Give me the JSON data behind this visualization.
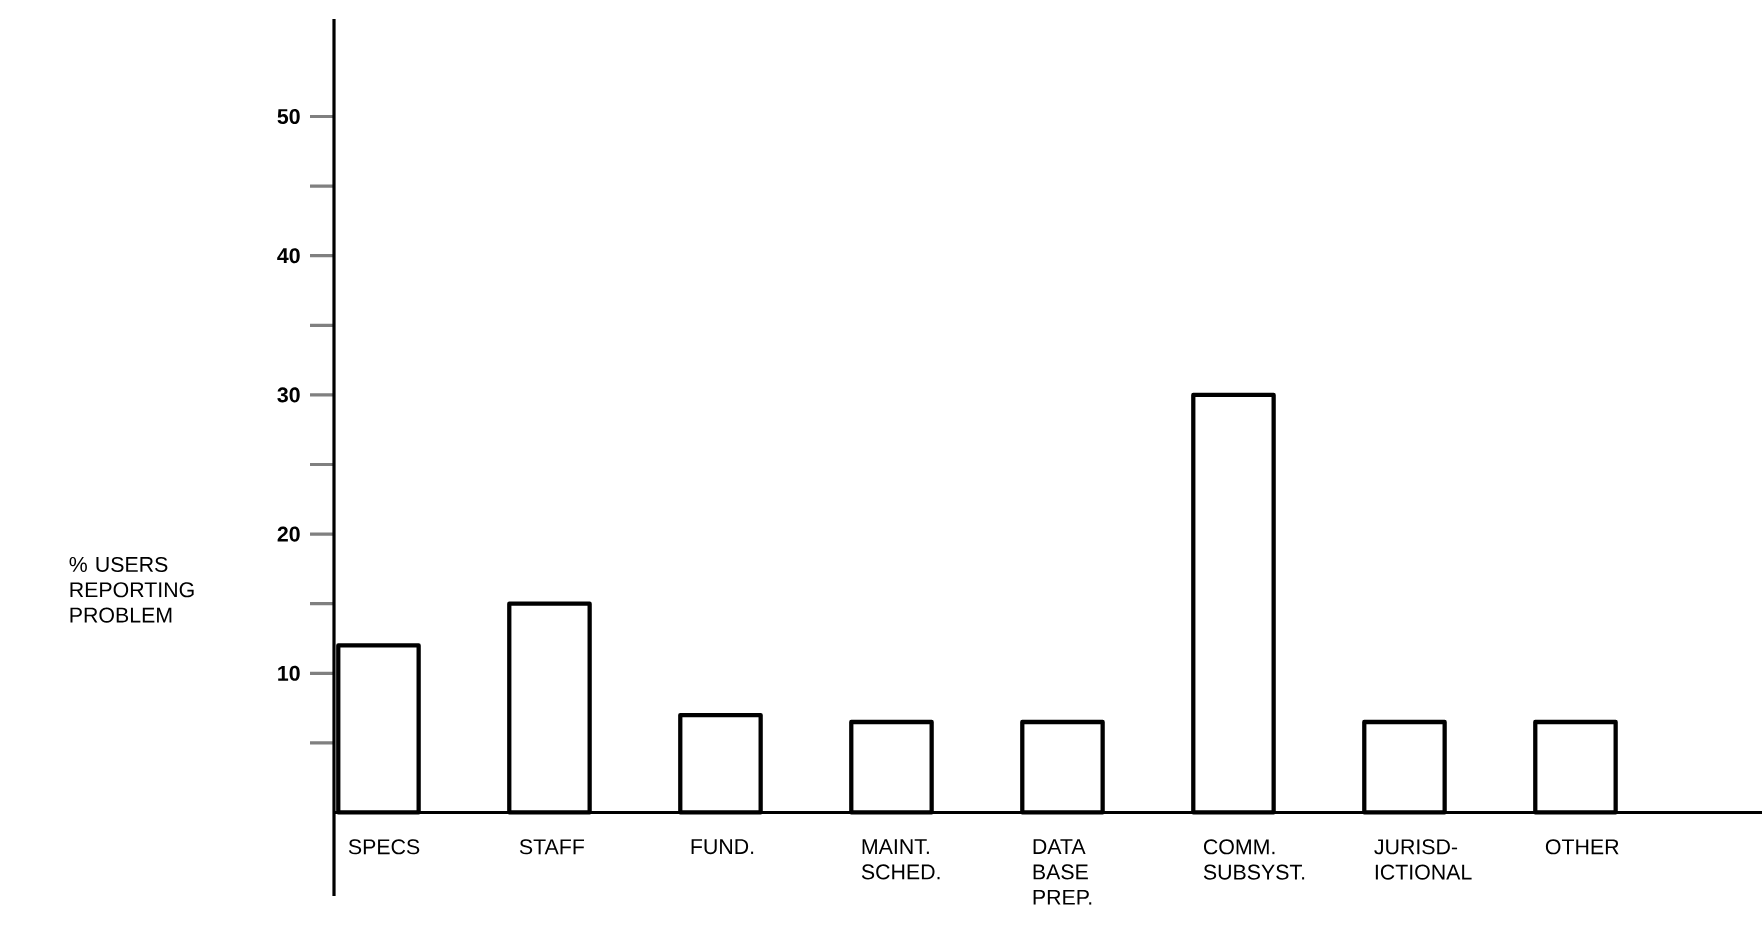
{
  "chart_data": {
    "type": "bar",
    "ylabel": "% USERS REPORTING PROBLEM",
    "categories": [
      "SPECS",
      "STAFF",
      "FUND.",
      "MAINT. SCHED.",
      "DATA BASE PREP.",
      "COMM. SUBSYST.",
      "JURISD-ICTIONAL",
      "OTHER"
    ],
    "values": [
      12,
      15,
      7,
      6.5,
      6.5,
      30,
      6.5,
      6.5
    ],
    "color": "#ffffff",
    "ylim": [
      -6,
      57
    ],
    "yticks": [
      {
        "value": 5,
        "label": null
      },
      10,
      {
        "value": 15,
        "label": null
      },
      20,
      {
        "value": 25,
        "label": null
      },
      30,
      {
        "value": 35,
        "label": null
      },
      40,
      {
        "value": 45,
        "label": null
      },
      50
    ],
    "grid": false
  }
}
